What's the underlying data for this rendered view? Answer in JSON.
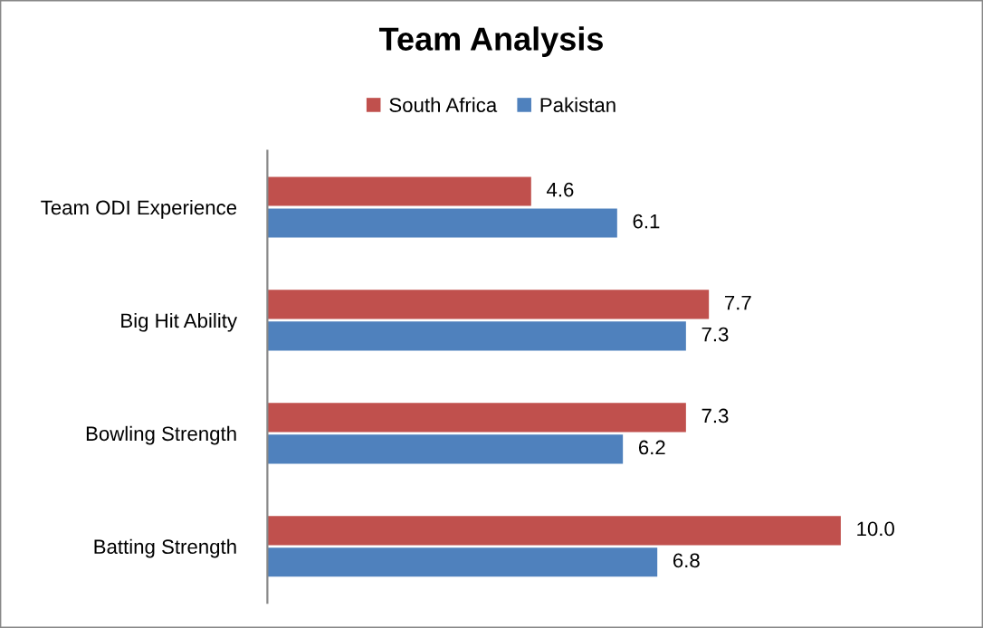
{
  "chart_data": {
    "type": "bar",
    "orientation": "horizontal",
    "title": "Team Analysis",
    "categories": [
      "Team ODI Experience",
      "Big Hit Ability",
      "Bowling Strength",
      "Batting Strength"
    ],
    "series": [
      {
        "name": "South Africa",
        "color": "#c0504d",
        "values": [
          4.6,
          7.7,
          7.3,
          10.0
        ],
        "value_labels": [
          "4.6",
          "7.7",
          "7.3",
          "10.0"
        ]
      },
      {
        "name": "Pakistan",
        "color": "#4f81bd",
        "values": [
          6.1,
          7.3,
          6.2,
          6.8
        ],
        "value_labels": [
          "6.1",
          "7.3",
          "6.2",
          "6.8"
        ]
      }
    ],
    "tick_labels": "y",
    "legend": "top",
    "grid": false
  }
}
